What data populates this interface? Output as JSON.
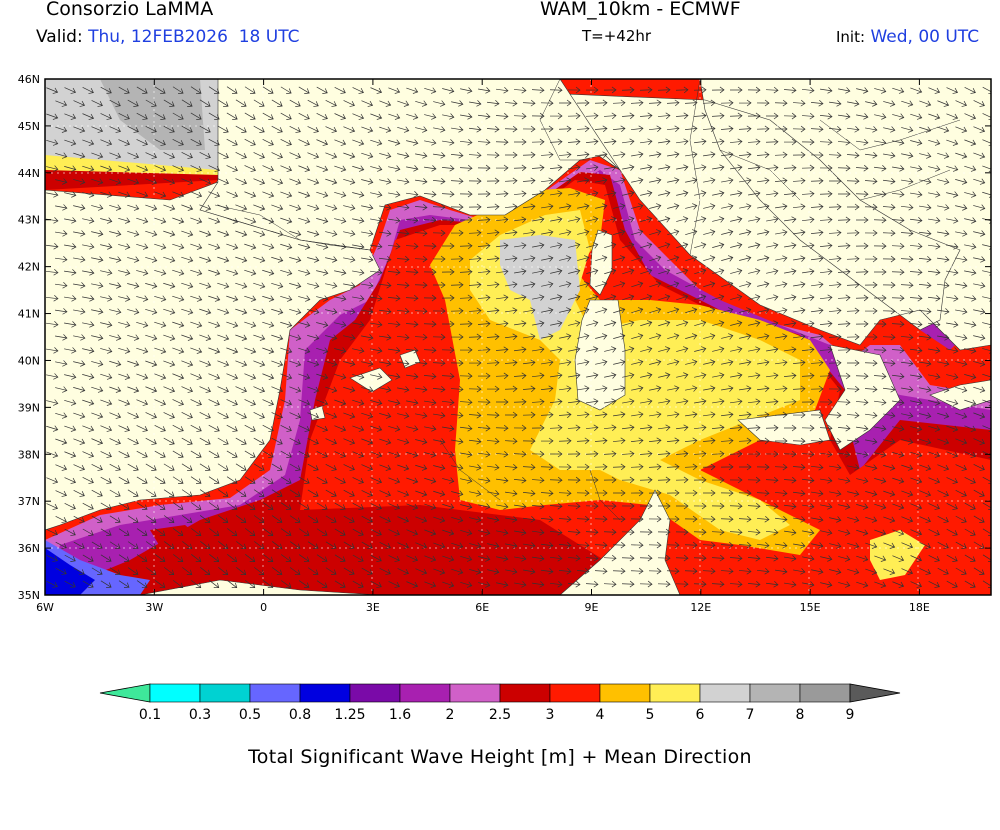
{
  "header": {
    "source": "Consorzio LaMMA",
    "model": "WAM_10km - ECMWF",
    "valid_label": "Valid:",
    "valid_value": "Thu, 12FEB2026  18 UTC",
    "forecast_step": "T=+42hr",
    "init_label": "Init:",
    "init_value": "Wed, 00 UTC"
  },
  "map": {
    "lat_labels": [
      "46N",
      "45N",
      "44N",
      "43N",
      "42N",
      "41N",
      "40N",
      "39N",
      "38N",
      "37N",
      "36N",
      "35N"
    ],
    "lon_labels": [
      "6W",
      "3W",
      "0",
      "3E",
      "6E",
      "9E",
      "12E",
      "15E",
      "18E"
    ],
    "land_color": "#fffee0",
    "arrow_direction": "towards south-east"
  },
  "colorbar": {
    "labels": [
      "0.1",
      "0.3",
      "0.5",
      "0.8",
      "1.25",
      "1.6",
      "2",
      "2.5",
      "3",
      "4",
      "5",
      "6",
      "7",
      "8",
      "9"
    ],
    "colors": [
      "#3ee89a",
      "#00ffff",
      "#00d2d2",
      "#6666ff",
      "#0000e0",
      "#7a0aa8",
      "#a820b0",
      "#d060c8",
      "#cc0000",
      "#ff1a00",
      "#ffc000",
      "#ffee55",
      "#d2d2d2",
      "#b4b4b4",
      "#9a9a9a",
      "#5a5a5a"
    ]
  },
  "caption": "Total Significant Wave Height [m] + Mean Direction"
}
